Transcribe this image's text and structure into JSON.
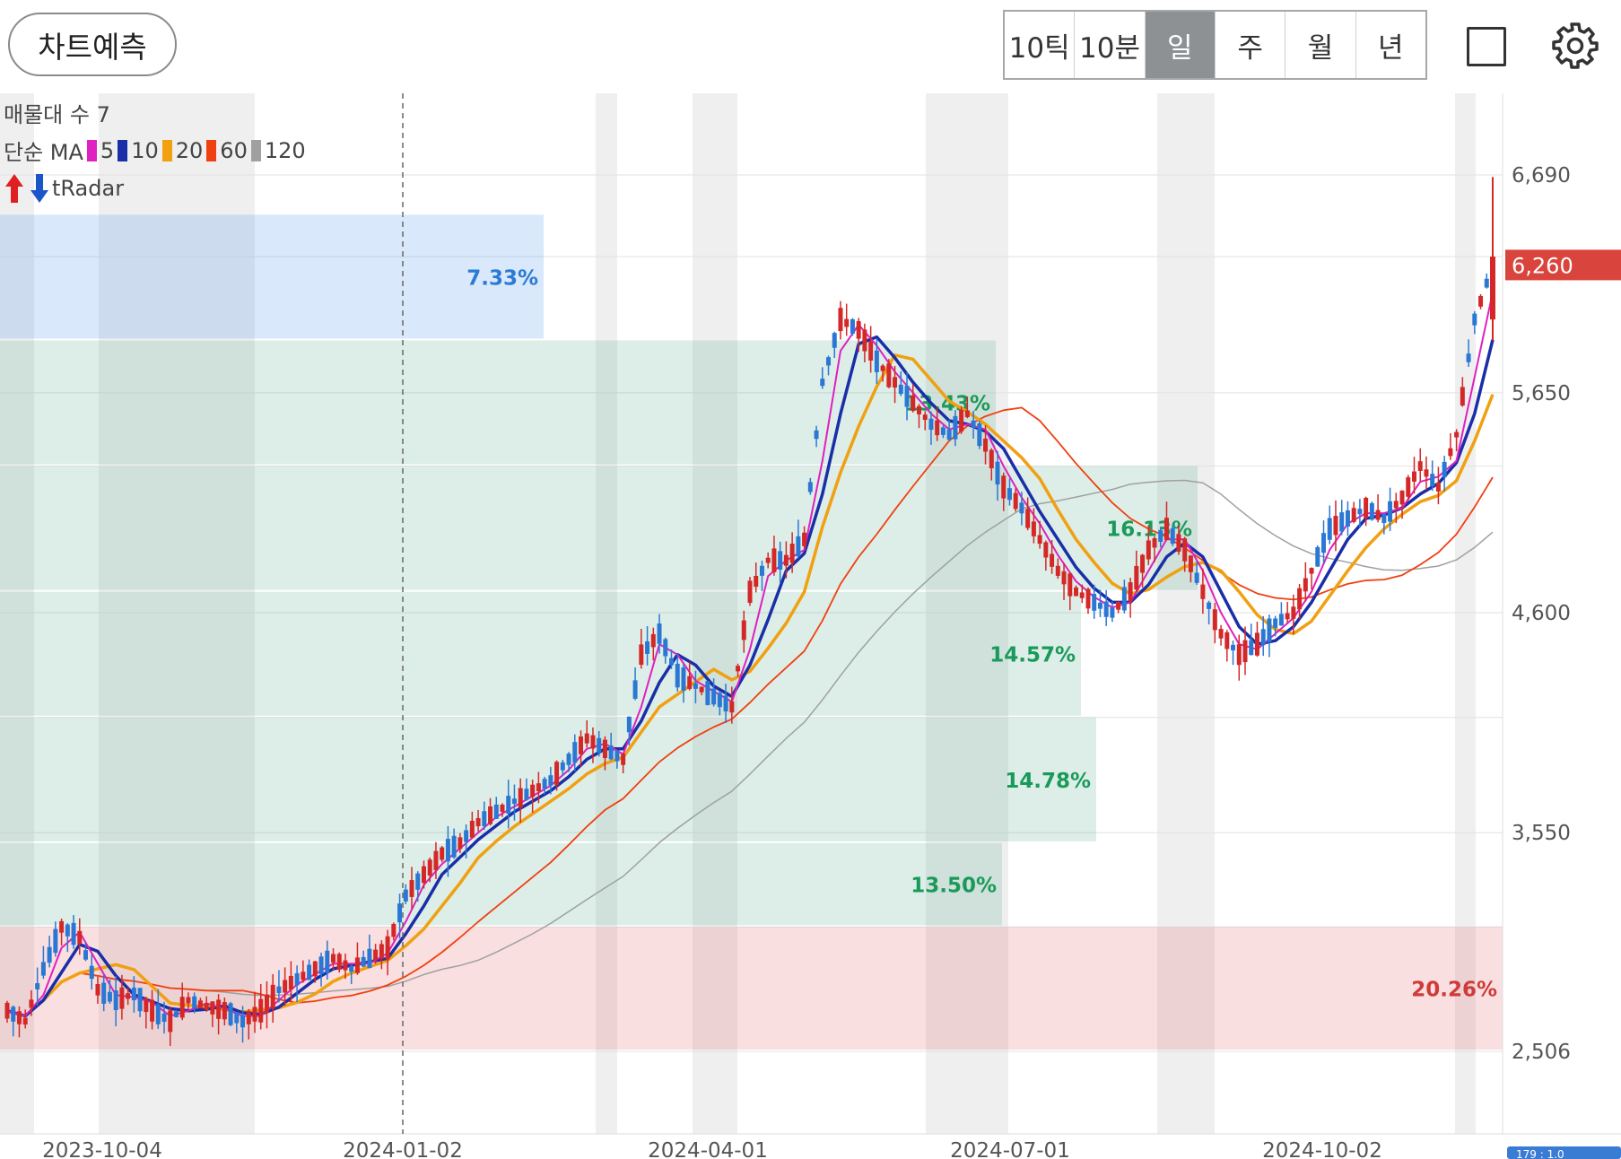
{
  "toolbar": {
    "predict_label": "차트예측",
    "periods": [
      {
        "label": "10틱",
        "active": false
      },
      {
        "label": "10분",
        "active": false
      },
      {
        "label": "일",
        "active": true
      },
      {
        "label": "주",
        "active": false
      },
      {
        "label": "월",
        "active": false
      },
      {
        "label": "년",
        "active": false
      }
    ],
    "icons": [
      "square-icon",
      "gear-icon"
    ]
  },
  "overlay": {
    "volume_profile_label": "매물대 수 7",
    "ma_prefix": "단순 MA",
    "ma_items": [
      {
        "period": "5",
        "color": "#e020c0"
      },
      {
        "period": "10",
        "color": "#1a2ea8"
      },
      {
        "period": "20",
        "color": "#f0a010"
      },
      {
        "period": "60",
        "color": "#f04010"
      },
      {
        "period": "120",
        "color": "#a0a0a0"
      }
    ],
    "tradar_label": "tRadar"
  },
  "chart_data": {
    "type": "candlestick",
    "y_ticks": [
      "6,690",
      "5,650",
      "4,600",
      "3,550",
      "2,506"
    ],
    "ylim": [
      2506,
      6690
    ],
    "x_ticks": [
      "2023-10-04",
      "2024-01-02",
      "2024-04-01",
      "2024-07-01",
      "2024-10-02"
    ],
    "current_price": "6,260",
    "current_price_value": 6260,
    "bottom_right_label": "179 : 1.0",
    "volume_zones": [
      {
        "label": "7.33%",
        "low": 5900,
        "high": 6500,
        "color": "#2a7bd4"
      },
      {
        "label": "13.43%",
        "low": 5300,
        "high": 5900,
        "color": "#1a9a5a"
      },
      {
        "label": "16.13%",
        "low": 4700,
        "high": 5300,
        "color": "#1a9a5a"
      },
      {
        "label": "14.57%",
        "low": 4100,
        "high": 4700,
        "color": "#1a9a5a"
      },
      {
        "label": "14.78%",
        "low": 3500,
        "high": 4100,
        "color": "#1a9a5a"
      },
      {
        "label": "13.50%",
        "low": 3100,
        "high": 3500,
        "color": "#1a9a5a"
      },
      {
        "label": "20.26%",
        "low": 2506,
        "high": 3100,
        "color": "#d03a3a"
      }
    ],
    "price_path": [
      2700,
      2650,
      2900,
      3100,
      3050,
      2800,
      2750,
      2780,
      2700,
      2650,
      2750,
      2720,
      2700,
      2650,
      2700,
      2800,
      2850,
      2900,
      2950,
      2900,
      2950,
      3000,
      3250,
      3350,
      3450,
      3500,
      3600,
      3650,
      3700,
      3750,
      3800,
      3900,
      4000,
      3950,
      3900,
      4400,
      4500,
      4300,
      4250,
      4200,
      4150,
      4700,
      4850,
      4850,
      4950,
      5700,
      6000,
      5950,
      5800,
      5700,
      5600,
      5500,
      5450,
      5550,
      5400,
      5200,
      5100,
      4950,
      4800,
      4700,
      4650,
      4600,
      4700,
      4900,
      5000,
      4900,
      4700,
      4500,
      4400,
      4450,
      4550,
      4600,
      4800,
      5000,
      5050,
      5100,
      5050,
      5150,
      5300,
      5200,
      5450,
      6000,
      6260
    ]
  }
}
